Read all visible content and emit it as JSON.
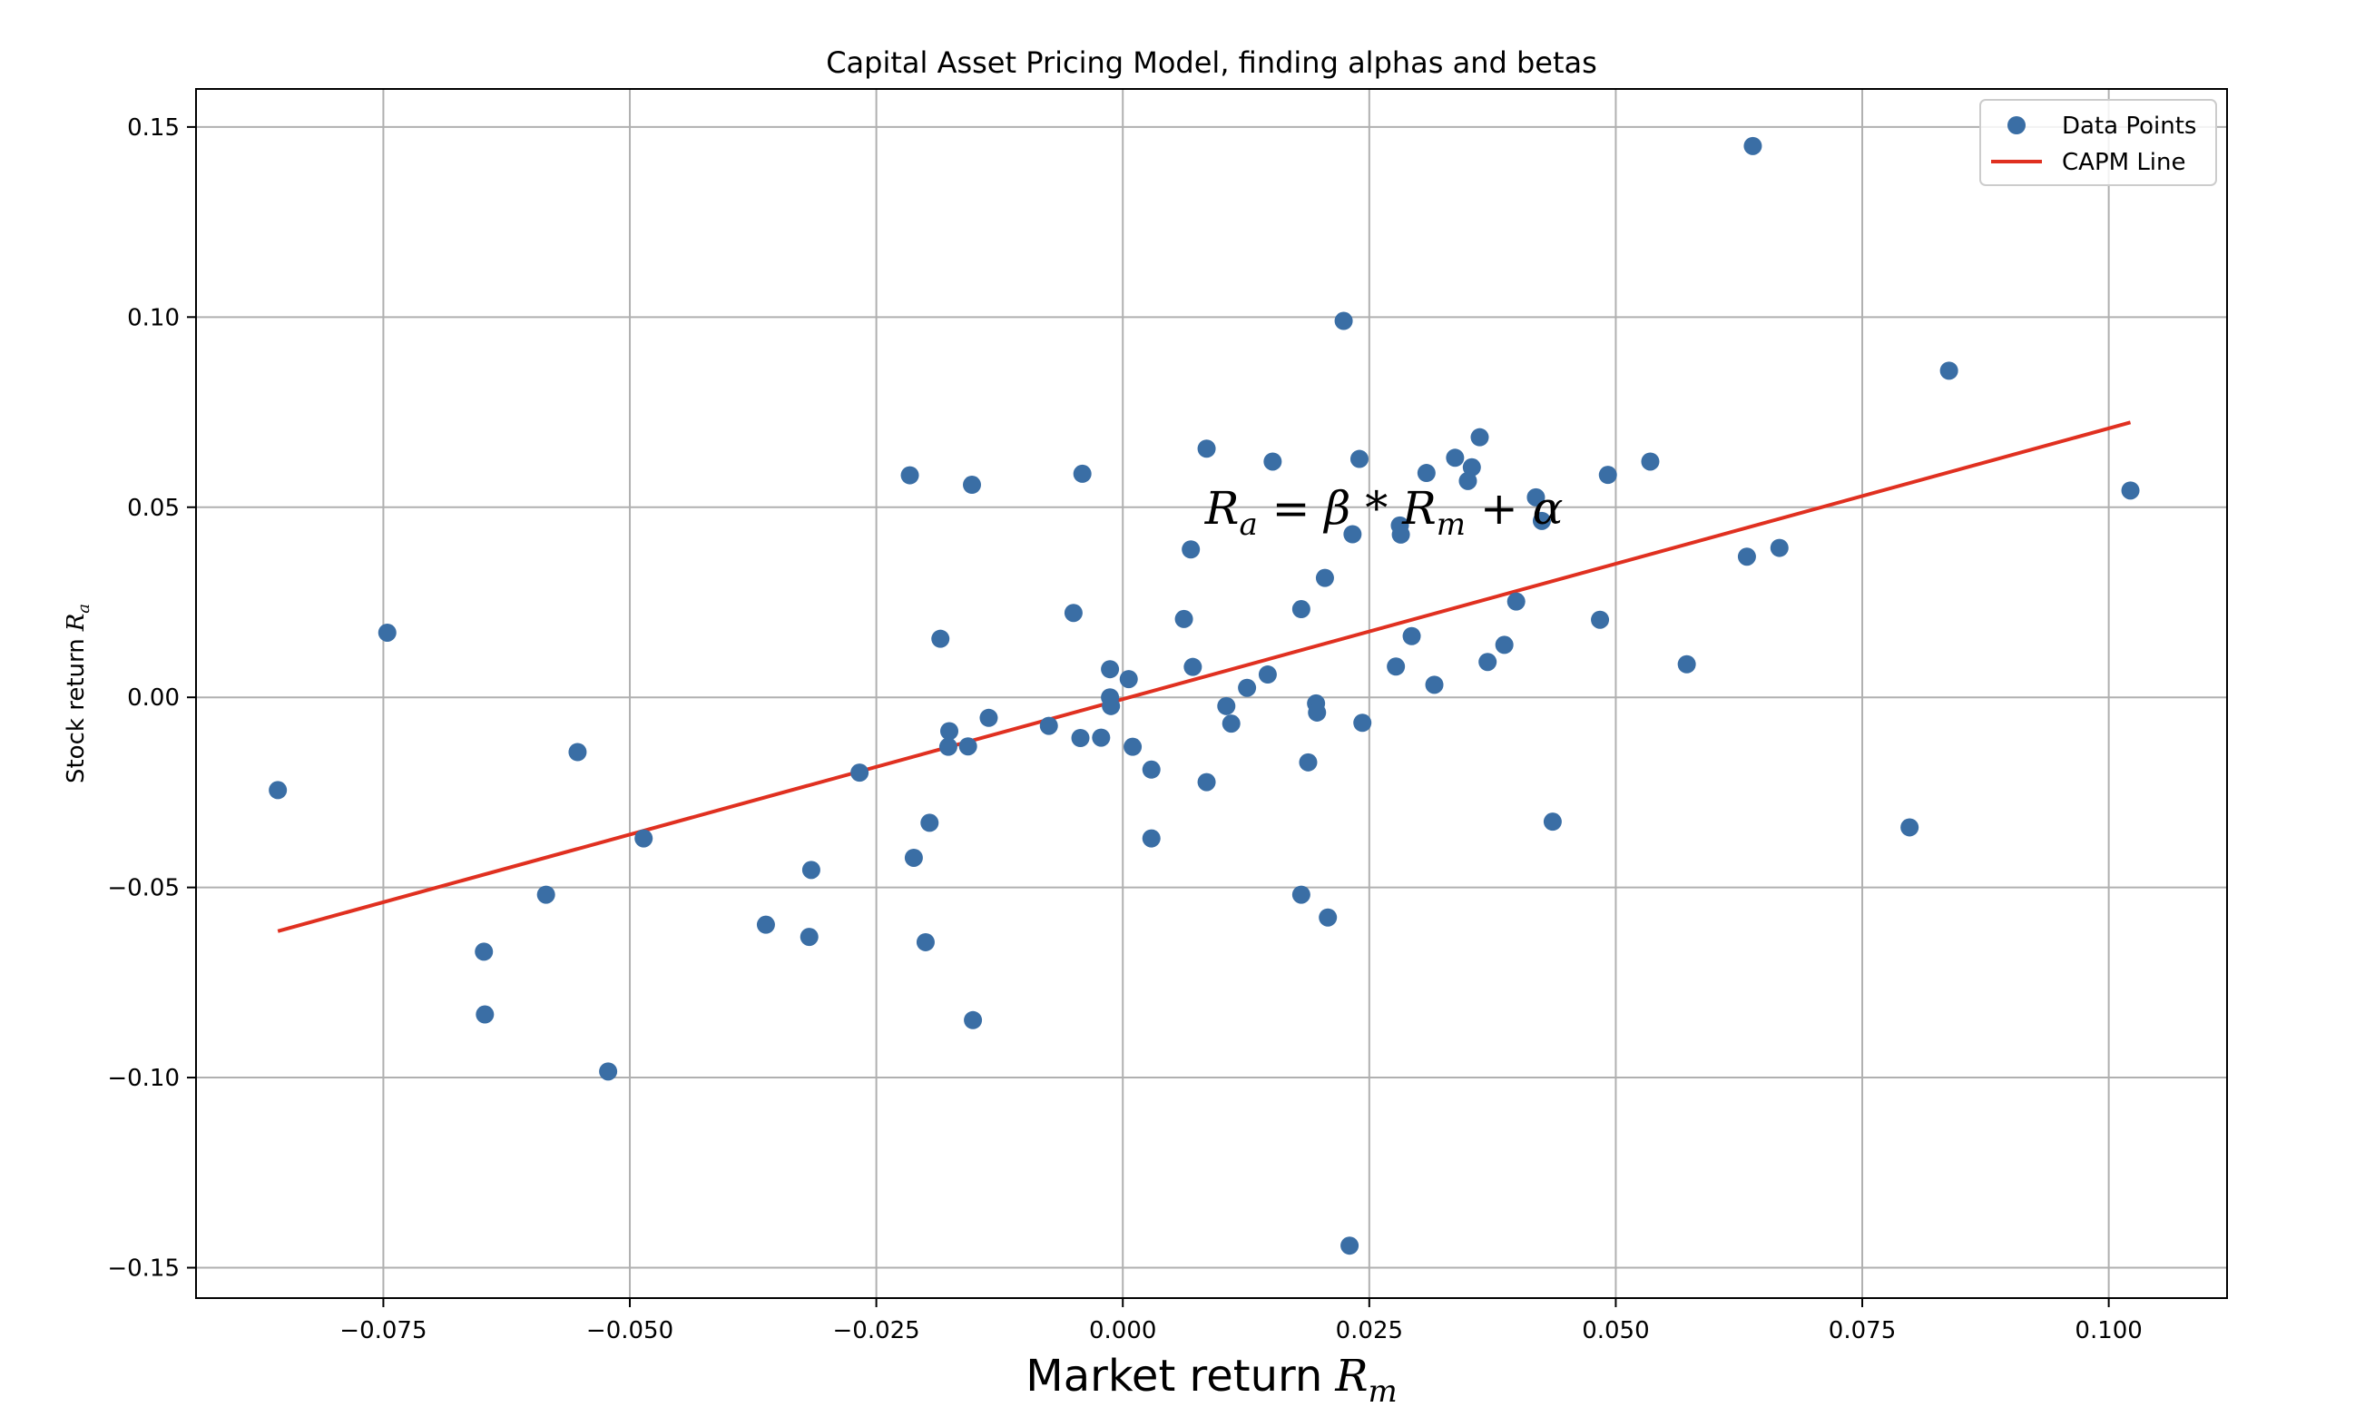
{
  "chart_data": {
    "type": "scatter",
    "title": "Capital Asset Pricing Model, finding alphas and betas",
    "xlabel": "Market return",
    "xlabel_symbol": "R",
    "xlabel_sub": "m",
    "ylabel": "Stock return",
    "ylabel_symbol": "R",
    "ylabel_sub": "a",
    "equation": {
      "lhs_symbol": "R",
      "lhs_sub": "a",
      "mid": " = β * ",
      "rhs_symbol": "R",
      "rhs_sub": "m",
      "tail": " + α",
      "x": 0.0265,
      "y": 0.05
    },
    "xlim": [
      -0.094,
      0.112
    ],
    "ylim": [
      -0.158,
      0.16
    ],
    "grid": true,
    "xticks": [
      {
        "value": -0.075,
        "label": "−0.075"
      },
      {
        "value": -0.05,
        "label": "−0.050"
      },
      {
        "value": -0.025,
        "label": "−0.025"
      },
      {
        "value": 0.0,
        "label": "0.000"
      },
      {
        "value": 0.025,
        "label": "0.025"
      },
      {
        "value": 0.05,
        "label": "0.050"
      },
      {
        "value": 0.075,
        "label": "0.075"
      },
      {
        "value": 0.1,
        "label": "0.100"
      }
    ],
    "yticks": [
      {
        "value": 0.15,
        "label": "0.15"
      },
      {
        "value": 0.1,
        "label": "0.10"
      },
      {
        "value": 0.05,
        "label": "0.05"
      },
      {
        "value": 0.0,
        "label": "0.00"
      },
      {
        "value": -0.05,
        "label": "−0.05"
      },
      {
        "value": -0.1,
        "label": "−0.10"
      },
      {
        "value": -0.15,
        "label": "−0.15"
      }
    ],
    "legend": {
      "position": "top-right",
      "entries": [
        {
          "label": "Data Points",
          "kind": "marker"
        },
        {
          "label": "CAPM Line",
          "kind": "line"
        }
      ]
    },
    "colors": {
      "points": "#3a6ea5",
      "line": "#e03020",
      "grid": "#b0b0b0",
      "axes": "#000000"
    },
    "series": [
      {
        "name": "Data Points",
        "type": "scatter",
        "points": [
          [
            -0.0857,
            -0.0244
          ],
          [
            -0.0746,
            0.017
          ],
          [
            -0.0648,
            -0.0669
          ],
          [
            -0.0647,
            -0.0834
          ],
          [
            -0.0585,
            -0.0519
          ],
          [
            -0.0553,
            -0.0144
          ],
          [
            -0.0522,
            -0.0984
          ],
          [
            -0.0486,
            -0.0371
          ],
          [
            -0.0362,
            -0.0598
          ],
          [
            -0.0318,
            -0.063
          ],
          [
            -0.0316,
            -0.0454
          ],
          [
            -0.0267,
            -0.0198
          ],
          [
            -0.0216,
            0.0584
          ],
          [
            -0.0212,
            -0.0422
          ],
          [
            -0.02,
            -0.0644
          ],
          [
            -0.0196,
            -0.033
          ],
          [
            -0.0185,
            0.0154
          ],
          [
            -0.0177,
            -0.013
          ],
          [
            -0.0176,
            -0.0089
          ],
          [
            -0.0157,
            -0.0129
          ],
          [
            -0.0153,
            0.0559
          ],
          [
            -0.0152,
            -0.0849
          ],
          [
            -0.0136,
            -0.0054
          ],
          [
            -0.0075,
            -0.0075
          ],
          [
            -0.005,
            0.0222
          ],
          [
            -0.0043,
            -0.0107
          ],
          [
            -0.0041,
            0.0588
          ],
          [
            -0.0022,
            -0.0106
          ],
          [
            -0.0013,
            0.0074
          ],
          [
            -0.0013,
            0.0
          ],
          [
            -0.0012,
            -0.0023
          ],
          [
            0.0006,
            0.0048
          ],
          [
            0.001,
            -0.013
          ],
          [
            0.0029,
            -0.019
          ],
          [
            0.0029,
            -0.0371
          ],
          [
            0.0062,
            0.0206
          ],
          [
            0.0069,
            0.0389
          ],
          [
            0.0071,
            0.008
          ],
          [
            0.0085,
            0.0654
          ],
          [
            0.0085,
            -0.0223
          ],
          [
            0.0105,
            -0.0023
          ],
          [
            0.011,
            -0.0069
          ],
          [
            0.0126,
            0.0025
          ],
          [
            0.0147,
            0.006
          ],
          [
            0.0152,
            0.062
          ],
          [
            0.0181,
            0.0232
          ],
          [
            0.0181,
            -0.0519
          ],
          [
            0.0188,
            -0.0171
          ],
          [
            0.0196,
            -0.0016
          ],
          [
            0.0197,
            -0.004
          ],
          [
            0.0205,
            0.0314
          ],
          [
            0.0208,
            -0.0579
          ],
          [
            0.0224,
            0.099
          ],
          [
            0.023,
            -0.1442
          ],
          [
            0.0233,
            0.0429
          ],
          [
            0.024,
            0.0627
          ],
          [
            0.0243,
            -0.0067
          ],
          [
            0.0277,
            0.0081
          ],
          [
            0.0281,
            0.0452
          ],
          [
            0.0282,
            0.0428
          ],
          [
            0.0293,
            0.0161
          ],
          [
            0.0308,
            0.059
          ],
          [
            0.0316,
            0.0033
          ],
          [
            0.0337,
            0.063
          ],
          [
            0.035,
            0.0569
          ],
          [
            0.0354,
            0.0605
          ],
          [
            0.0362,
            0.0684
          ],
          [
            0.037,
            0.0093
          ],
          [
            0.0387,
            0.0138
          ],
          [
            0.0399,
            0.0252
          ],
          [
            0.0419,
            0.0526
          ],
          [
            0.0425,
            0.0464
          ],
          [
            0.0436,
            -0.0327
          ],
          [
            0.0484,
            0.0204
          ],
          [
            0.0492,
            0.0585
          ],
          [
            0.0535,
            0.062
          ],
          [
            0.0572,
            0.0087
          ],
          [
            0.0633,
            0.037
          ],
          [
            0.0639,
            0.145
          ],
          [
            0.0666,
            0.0393
          ],
          [
            0.0798,
            -0.0342
          ],
          [
            0.0838,
            0.0859
          ],
          [
            0.1022,
            0.0544
          ]
        ]
      },
      {
        "name": "CAPM Line",
        "type": "line",
        "x": [
          -0.0857,
          0.1022
        ],
        "y": [
          -0.0615,
          0.0723
        ]
      }
    ]
  }
}
